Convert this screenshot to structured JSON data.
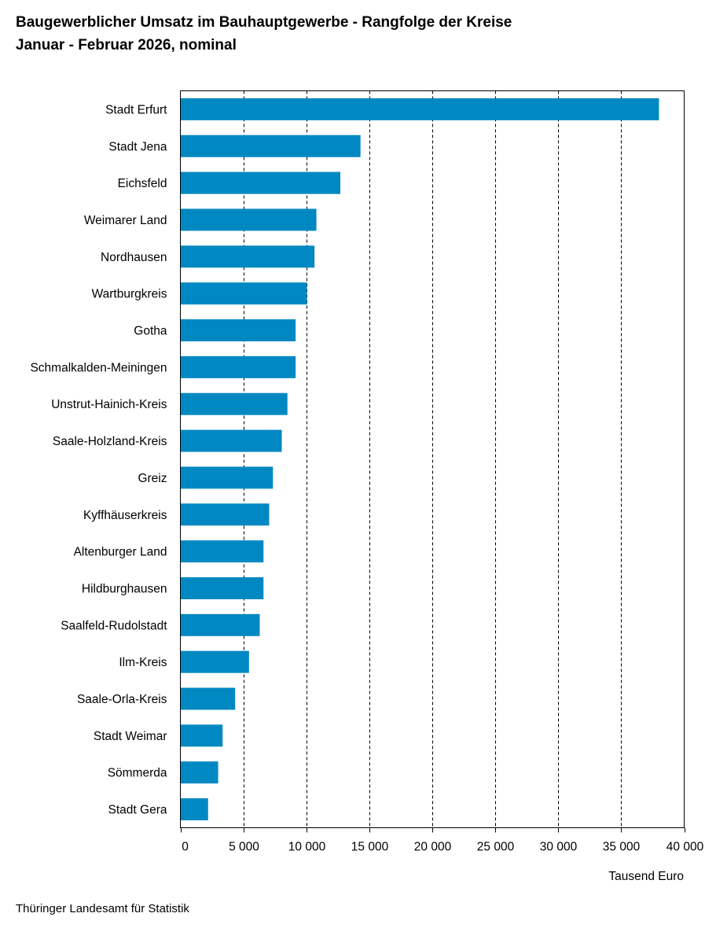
{
  "title": {
    "line1": "Baugewerblicher Umsatz im Bauhauptgewerbe - Rangfolge der Kreise",
    "line2": "Januar - Februar 2026, nominal"
  },
  "source": "Thüringer Landesamt für Statistik",
  "chart_data": {
    "type": "bar",
    "orientation": "horizontal",
    "title": "Baugewerblicher Umsatz im Bauhauptgewerbe - Rangfolge der Kreise",
    "subtitle": "Januar - Februar 2026, nominal",
    "xlabel": "Tausend Euro",
    "ylabel": "",
    "xlim": [
      0,
      40000
    ],
    "xticks": [
      0,
      5000,
      10000,
      15000,
      20000,
      25000,
      30000,
      35000,
      40000
    ],
    "xtick_labels": [
      "0",
      "5 000",
      "10 000",
      "15 000",
      "20 000",
      "25 000",
      "30 000",
      "35 000",
      "40 000"
    ],
    "grid": "vertical dashed",
    "bar_color": "#0088c2",
    "categories": [
      "Stadt Erfurt",
      "Stadt Jena",
      "Eichsfeld",
      "Weimarer Land",
      "Nordhausen",
      "Wartburgkreis",
      "Gotha",
      "Schmalkalden-Meiningen",
      "Unstrut-Hainich-Kreis",
      "Saale-Holzland-Kreis",
      "Greiz",
      "Kyffhäuserkreis",
      "Altenburger Land",
      "Hildburghausen",
      "Saalfeld-Rudolstadt",
      "Ilm-Kreis",
      "Saale-Orla-Kreis",
      "Stadt Weimar",
      "Sömmerda",
      "Stadt Gera"
    ],
    "values": [
      38000,
      14300,
      12700,
      10800,
      10650,
      10050,
      9150,
      9150,
      8500,
      8050,
      7350,
      7050,
      6600,
      6600,
      6300,
      5450,
      4350,
      3350,
      3000,
      2200
    ]
  }
}
